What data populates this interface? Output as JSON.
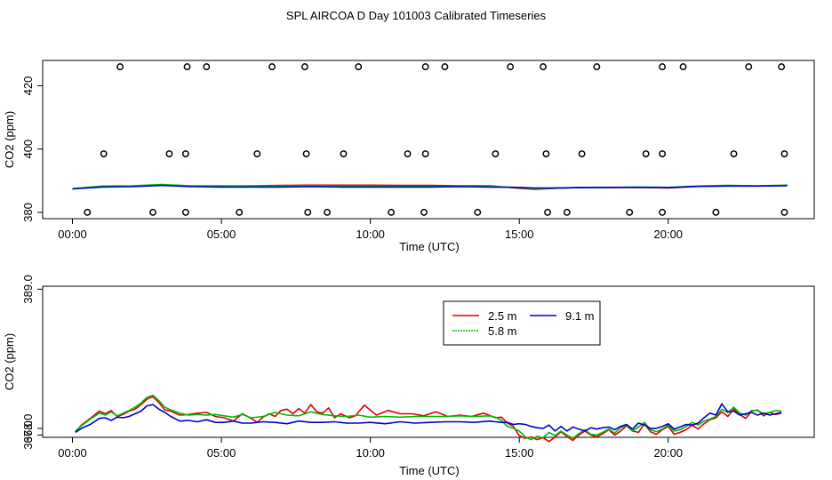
{
  "figure": {
    "title": "SPL AIRCOA D  Day 101003  Calibrated Timeseries"
  },
  "chart_data": [
    {
      "type": "line",
      "panel": "top",
      "title": "",
      "xlabel": "Time (UTC)",
      "ylabel": "CO2 (ppm)",
      "xlim": [
        -1.0,
        24.9
      ],
      "ylim": [
        378,
        428
      ],
      "xticks": [
        0,
        5,
        10,
        15,
        20
      ],
      "xtick_labels": [
        "00:00",
        "05:00",
        "10:00",
        "15:00",
        "20:00"
      ],
      "yticks": [
        380,
        400,
        420
      ],
      "ytick_labels": [
        "380",
        "400",
        "420"
      ],
      "series": [
        {
          "name": "2.5 m",
          "color": "#dd0000",
          "x": [
            0,
            1,
            2,
            3,
            4,
            5,
            6,
            7,
            8,
            9,
            10,
            11,
            12,
            13,
            14,
            15,
            15.5,
            16,
            17,
            18,
            19,
            20,
            21,
            22,
            23,
            24
          ],
          "values": [
            387.4,
            388.2,
            388.3,
            388.6,
            388.3,
            388.3,
            388.4,
            388.5,
            388.6,
            388.6,
            388.6,
            388.5,
            388.5,
            388.4,
            388.4,
            387.6,
            387.3,
            387.5,
            387.9,
            387.8,
            387.9,
            387.7,
            388.2,
            388.4,
            388.3,
            388.5
          ]
        },
        {
          "name": "5.8 m",
          "color": "#00bb00",
          "x": [
            0,
            1,
            2,
            3,
            4,
            5,
            6,
            7,
            8,
            9,
            10,
            11,
            12,
            13,
            14,
            15,
            15.5,
            16,
            17,
            18,
            19,
            20,
            21,
            22,
            23,
            24
          ],
          "values": [
            387.5,
            388.3,
            388.4,
            388.8,
            388.4,
            388.4,
            388.3,
            388.3,
            388.4,
            388.3,
            388.3,
            388.2,
            388.2,
            388.2,
            388.2,
            387.8,
            387.5,
            387.6,
            387.8,
            387.9,
            388.0,
            387.9,
            388.3,
            388.5,
            388.4,
            388.6
          ]
        },
        {
          "name": "9.1 m",
          "color": "#0000cc",
          "x": [
            0,
            1,
            2,
            3,
            4,
            5,
            6,
            7,
            8,
            9,
            10,
            11,
            12,
            13,
            14,
            15,
            15.5,
            16,
            17,
            18,
            19,
            20,
            21,
            22,
            23,
            24
          ],
          "values": [
            387.4,
            388.0,
            388.1,
            388.5,
            388.1,
            388.0,
            388.0,
            388.0,
            388.1,
            388.0,
            388.0,
            388.0,
            388.0,
            388.1,
            388.0,
            387.9,
            387.7,
            387.7,
            387.8,
            387.9,
            387.9,
            387.8,
            388.2,
            388.3,
            388.3,
            388.4
          ]
        }
      ],
      "scatter_points": [
        {
          "x": 1.6,
          "y": 426
        },
        {
          "x": 3.85,
          "y": 426
        },
        {
          "x": 4.5,
          "y": 426
        },
        {
          "x": 6.7,
          "y": 426
        },
        {
          "x": 7.8,
          "y": 426
        },
        {
          "x": 9.6,
          "y": 426
        },
        {
          "x": 11.85,
          "y": 426
        },
        {
          "x": 12.5,
          "y": 426
        },
        {
          "x": 14.7,
          "y": 426
        },
        {
          "x": 15.8,
          "y": 426
        },
        {
          "x": 17.6,
          "y": 426
        },
        {
          "x": 19.8,
          "y": 426
        },
        {
          "x": 20.5,
          "y": 426
        },
        {
          "x": 22.7,
          "y": 426
        },
        {
          "x": 23.8,
          "y": 426
        },
        {
          "x": 1.05,
          "y": 398.5
        },
        {
          "x": 3.25,
          "y": 398.5
        },
        {
          "x": 3.8,
          "y": 398.5
        },
        {
          "x": 6.2,
          "y": 398.5
        },
        {
          "x": 7.85,
          "y": 398.5
        },
        {
          "x": 9.1,
          "y": 398.5
        },
        {
          "x": 11.25,
          "y": 398.5
        },
        {
          "x": 11.85,
          "y": 398.5
        },
        {
          "x": 14.2,
          "y": 398.5
        },
        {
          "x": 15.9,
          "y": 398.5
        },
        {
          "x": 17.1,
          "y": 398.5
        },
        {
          "x": 19.25,
          "y": 398.5
        },
        {
          "x": 19.8,
          "y": 398.5
        },
        {
          "x": 22.2,
          "y": 398.5
        },
        {
          "x": 23.9,
          "y": 398.5
        },
        {
          "x": 0.5,
          "y": 380
        },
        {
          "x": 2.7,
          "y": 380
        },
        {
          "x": 3.8,
          "y": 380
        },
        {
          "x": 5.6,
          "y": 380
        },
        {
          "x": 7.9,
          "y": 380
        },
        {
          "x": 8.55,
          "y": 380
        },
        {
          "x": 10.7,
          "y": 380
        },
        {
          "x": 11.8,
          "y": 380
        },
        {
          "x": 13.6,
          "y": 380
        },
        {
          "x": 15.95,
          "y": 380
        },
        {
          "x": 16.6,
          "y": 380
        },
        {
          "x": 18.7,
          "y": 380
        },
        {
          "x": 19.8,
          "y": 380
        },
        {
          "x": 21.6,
          "y": 380
        },
        {
          "x": 23.9,
          "y": 380
        }
      ]
    },
    {
      "type": "line",
      "panel": "bottom",
      "title": "",
      "xlabel": "Time (UTC)",
      "ylabel": "CO2 (ppm)",
      "xlim": [
        -1.0,
        24.9
      ],
      "ylim": [
        366.65,
        389.45
      ],
      "xticks": [
        0,
        5,
        10,
        15,
        20
      ],
      "xtick_labels": [
        "00:00",
        "05:00",
        "10:00",
        "15:00",
        "20:00"
      ],
      "yticks": [
        367.0,
        368.0,
        389.0
      ],
      "ytick_labels": [
        "367.0",
        "368.0",
        "389.0"
      ],
      "legend": {
        "position": "top-center",
        "entries": [
          "2.5 m",
          "9.1 m",
          "5.8 m"
        ]
      },
      "series": [
        {
          "name": "2.5 m",
          "color": "#dd0000",
          "x": [
            0.1,
            0.3,
            0.6,
            0.9,
            1.1,
            1.3,
            1.5,
            1.7,
            1.9,
            2.1,
            2.3,
            2.5,
            2.7,
            2.9,
            3.1,
            3.3,
            3.6,
            3.9,
            4.2,
            4.5,
            4.8,
            5.1,
            5.4,
            5.7,
            6.0,
            6.2,
            6.4,
            6.6,
            6.8,
            7.0,
            7.2,
            7.4,
            7.6,
            7.8,
            8.0,
            8.2,
            8.4,
            8.6,
            8.8,
            9.0,
            9.3,
            9.5,
            9.8,
            10.2,
            10.6,
            11.0,
            11.4,
            11.8,
            12.2,
            12.6,
            13.0,
            13.4,
            13.8,
            14.2,
            14.4,
            14.6,
            14.8,
            15.0,
            15.2,
            15.4,
            15.6,
            15.8,
            16.0,
            16.2,
            16.4,
            16.6,
            16.8,
            17.0,
            17.2,
            17.4,
            17.6,
            17.8,
            18.0,
            18.2,
            18.4,
            18.6,
            18.8,
            19.0,
            19.2,
            19.4,
            19.6,
            19.8,
            20.0,
            20.2,
            20.4,
            20.6,
            20.8,
            21.0,
            21.2,
            21.4,
            21.6,
            21.8,
            22.0,
            22.2,
            22.4,
            22.6,
            22.8,
            23.0,
            23.2,
            23.4,
            23.6,
            23.8
          ],
          "values": [
            367.5,
            368.5,
            369.5,
            370.6,
            370.2,
            370.7,
            369.8,
            370.1,
            370.6,
            370.9,
            371.6,
            372.4,
            372.8,
            371.9,
            370.8,
            370.6,
            370.0,
            370.1,
            370.3,
            370.4,
            369.8,
            369.6,
            369.1,
            370.2,
            369.5,
            368.9,
            369.7,
            370.2,
            369.8,
            370.7,
            370.9,
            370.2,
            371.0,
            370.3,
            371.6,
            370.5,
            370.3,
            371.1,
            369.6,
            370.2,
            369.6,
            369.9,
            371.5,
            370.0,
            370.7,
            370.2,
            370.2,
            369.9,
            370.5,
            369.8,
            370.0,
            369.8,
            370.3,
            369.6,
            369.7,
            368.8,
            368.3,
            366.9,
            366.5,
            366.7,
            366.3,
            366.6,
            366.0,
            366.7,
            367.5,
            366.8,
            366.2,
            367.0,
            367.6,
            367.0,
            366.7,
            367.2,
            367.8,
            367.0,
            367.6,
            368.4,
            367.6,
            367.4,
            368.7,
            367.5,
            367.1,
            367.8,
            368.3,
            367.1,
            367.4,
            367.8,
            368.5,
            367.9,
            368.7,
            369.3,
            369.6,
            370.5,
            369.8,
            370.9,
            370.1,
            369.5,
            370.6,
            370.8,
            369.9,
            370.4,
            370.1,
            370.3
          ]
        },
        {
          "name": "5.8 m",
          "color": "#00bb00",
          "x": [
            0.1,
            0.3,
            0.6,
            0.9,
            1.1,
            1.3,
            1.5,
            1.7,
            1.9,
            2.1,
            2.3,
            2.5,
            2.7,
            2.9,
            3.1,
            3.3,
            3.6,
            3.9,
            4.2,
            4.5,
            4.8,
            5.1,
            5.4,
            5.7,
            6.0,
            6.4,
            6.8,
            7.2,
            7.6,
            8.0,
            8.4,
            8.8,
            9.2,
            9.6,
            10.0,
            10.5,
            11.0,
            11.5,
            12.0,
            12.5,
            13.0,
            13.5,
            14.0,
            14.2,
            14.4,
            14.6,
            14.8,
            15.0,
            15.2,
            15.4,
            15.6,
            15.8,
            16.0,
            16.2,
            16.4,
            16.6,
            16.8,
            17.0,
            17.2,
            17.4,
            17.6,
            17.8,
            18.0,
            18.2,
            18.4,
            18.6,
            18.8,
            19.0,
            19.2,
            19.4,
            19.6,
            19.8,
            20.0,
            20.2,
            20.4,
            20.6,
            20.8,
            21.0,
            21.2,
            21.4,
            21.6,
            21.8,
            22.0,
            22.2,
            22.4,
            22.6,
            22.8,
            23.0,
            23.2,
            23.4,
            23.6,
            23.8
          ],
          "values": [
            367.6,
            368.4,
            369.4,
            370.3,
            370.0,
            370.5,
            369.9,
            370.3,
            370.7,
            371.2,
            371.8,
            372.7,
            373.0,
            372.2,
            371.2,
            370.8,
            370.3,
            370.0,
            370.1,
            370.0,
            370.1,
            369.9,
            369.7,
            370.1,
            369.6,
            369.8,
            370.4,
            370.0,
            369.9,
            370.5,
            370.1,
            369.9,
            369.8,
            370.0,
            369.7,
            369.8,
            369.7,
            369.8,
            369.8,
            369.8,
            369.9,
            369.8,
            369.9,
            369.7,
            369.2,
            368.3,
            368.0,
            367.6,
            366.7,
            366.3,
            366.8,
            366.6,
            367.4,
            366.9,
            367.6,
            367.0,
            366.5,
            367.2,
            367.8,
            367.1,
            367.0,
            367.4,
            367.9,
            367.3,
            368.1,
            368.5,
            367.6,
            368.2,
            368.9,
            367.8,
            367.5,
            367.9,
            368.5,
            367.6,
            367.8,
            368.3,
            368.9,
            368.5,
            369.1,
            369.4,
            369.8,
            370.9,
            370.4,
            371.2,
            370.3,
            370.0,
            370.7,
            370.7,
            370.2,
            370.4,
            370.7,
            370.6
          ]
        },
        {
          "name": "9.1 m",
          "color": "#0000cc",
          "x": [
            0.1,
            0.3,
            0.6,
            0.9,
            1.1,
            1.3,
            1.5,
            1.7,
            1.9,
            2.1,
            2.3,
            2.5,
            2.7,
            2.9,
            3.1,
            3.3,
            3.6,
            3.9,
            4.2,
            4.5,
            4.8,
            5.1,
            5.4,
            5.7,
            6.0,
            6.4,
            6.8,
            7.2,
            7.6,
            8.0,
            8.4,
            8.8,
            9.2,
            9.6,
            10.0,
            10.5,
            11.0,
            11.5,
            12.0,
            12.5,
            13.0,
            13.5,
            14.0,
            14.2,
            14.4,
            14.6,
            14.8,
            15.0,
            15.2,
            15.4,
            15.6,
            15.8,
            16.0,
            16.2,
            16.4,
            16.6,
            16.8,
            17.0,
            17.2,
            17.4,
            17.6,
            17.8,
            18.0,
            18.2,
            18.4,
            18.6,
            18.8,
            19.0,
            19.2,
            19.4,
            19.6,
            19.8,
            20.0,
            20.2,
            20.4,
            20.6,
            20.8,
            21.0,
            21.2,
            21.4,
            21.6,
            21.8,
            22.0,
            22.2,
            22.4,
            22.6,
            22.8,
            23.0,
            23.2,
            23.4,
            23.6,
            23.8
          ],
          "values": [
            367.4,
            368.0,
            368.6,
            369.5,
            369.6,
            369.2,
            369.7,
            369.6,
            369.8,
            370.2,
            370.6,
            371.4,
            371.6,
            370.9,
            370.4,
            369.8,
            369.1,
            369.2,
            369.0,
            369.3,
            368.9,
            368.9,
            369.1,
            368.8,
            368.8,
            369.0,
            368.9,
            368.7,
            369.1,
            368.9,
            368.9,
            369.0,
            368.8,
            368.8,
            368.9,
            368.7,
            369.0,
            368.8,
            368.9,
            369.0,
            369.0,
            368.9,
            369.1,
            369.0,
            368.9,
            368.9,
            368.6,
            368.7,
            368.6,
            368.3,
            368.1,
            368.0,
            368.5,
            367.6,
            368.3,
            367.6,
            368.2,
            367.9,
            367.6,
            368.1,
            367.9,
            368.1,
            368.2,
            367.8,
            368.3,
            368.6,
            367.9,
            368.8,
            368.5,
            368.0,
            368.0,
            368.3,
            368.7,
            367.9,
            368.2,
            368.6,
            368.5,
            368.8,
            369.6,
            370.3,
            370.0,
            371.7,
            370.5,
            370.6,
            370.0,
            370.2,
            370.4,
            370.0,
            370.3,
            370.0,
            370.2,
            370.4
          ]
        }
      ]
    }
  ]
}
